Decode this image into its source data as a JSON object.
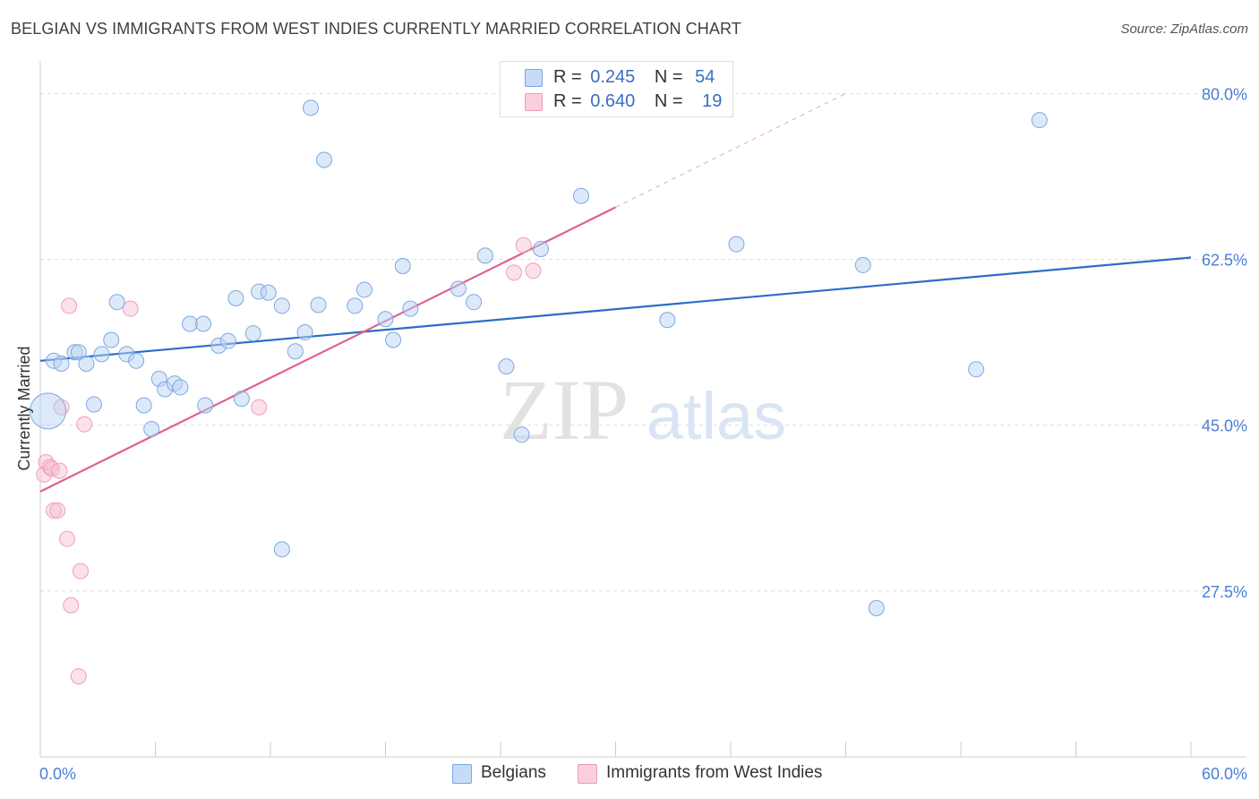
{
  "title": "BELGIAN VS IMMIGRANTS FROM WEST INDIES CURRENTLY MARRIED CORRELATION CHART",
  "source": "Source: ZipAtlas.com",
  "watermark": {
    "zip": "ZIP",
    "atlas": "atlas"
  },
  "legend": {
    "r_label": "R =",
    "n_label": "N =",
    "rows": [
      {
        "r": "0.245",
        "n": "54"
      },
      {
        "r": "0.640",
        "n": "19"
      }
    ]
  },
  "chart_data": {
    "type": "scatter",
    "title": "BELGIAN VS IMMIGRANTS FROM WEST INDIES CURRENTLY MARRIED CORRELATION CHART",
    "xlabel": "",
    "ylabel": "Currently Married",
    "xlim": [
      0,
      60
    ],
    "ylim": [
      10,
      82.5
    ],
    "x_tick_labels": [
      "0.0%",
      "60.0%"
    ],
    "y_ticks": [
      27.5,
      45.0,
      62.5,
      80.0
    ],
    "y_tick_labels": [
      "27.5%",
      "45.0%",
      "62.5%",
      "80.0%"
    ],
    "colors": {
      "belgians": "#6f9fe0",
      "west_indies": "#f0a0bc",
      "blue_line": "#2d6cc7",
      "pink_line": "#e0608e",
      "tick_text": "#4a7fd4"
    },
    "series": [
      {
        "name": "Belgians",
        "r": 0.245,
        "n": 54,
        "trend": {
          "x0": 0,
          "y0": 51.8,
          "x1": 60,
          "y1": 62.7
        },
        "points": [
          [
            0.4,
            46.5
          ],
          [
            0.7,
            51.8
          ],
          [
            1.1,
            51.5
          ],
          [
            1.8,
            52.7
          ],
          [
            2.0,
            52.7
          ],
          [
            2.4,
            51.5
          ],
          [
            2.8,
            47.2
          ],
          [
            3.2,
            52.5
          ],
          [
            3.7,
            54.0
          ],
          [
            4.0,
            58.0
          ],
          [
            4.5,
            52.5
          ],
          [
            5.0,
            51.8
          ],
          [
            5.4,
            47.1
          ],
          [
            5.8,
            44.6
          ],
          [
            6.2,
            49.9
          ],
          [
            6.5,
            48.8
          ],
          [
            7.0,
            49.4
          ],
          [
            7.3,
            49.0
          ],
          [
            7.8,
            55.7
          ],
          [
            8.5,
            55.7
          ],
          [
            8.6,
            47.1
          ],
          [
            9.3,
            53.4
          ],
          [
            9.8,
            53.9
          ],
          [
            10.2,
            58.4
          ],
          [
            10.5,
            47.8
          ],
          [
            11.1,
            54.7
          ],
          [
            11.4,
            59.1
          ],
          [
            11.9,
            59.0
          ],
          [
            12.6,
            57.6
          ],
          [
            12.6,
            31.9
          ],
          [
            13.3,
            52.8
          ],
          [
            13.8,
            54.8
          ],
          [
            14.1,
            78.5
          ],
          [
            14.5,
            57.7
          ],
          [
            14.8,
            73.0
          ],
          [
            16.4,
            57.6
          ],
          [
            16.9,
            59.3
          ],
          [
            18.0,
            56.2
          ],
          [
            18.4,
            54.0
          ],
          [
            18.9,
            61.8
          ],
          [
            19.3,
            57.3
          ],
          [
            21.8,
            59.4
          ],
          [
            22.6,
            58.0
          ],
          [
            23.2,
            62.9
          ],
          [
            24.3,
            51.2
          ],
          [
            25.1,
            44.0
          ],
          [
            26.1,
            63.6
          ],
          [
            28.2,
            69.2
          ],
          [
            32.7,
            56.1
          ],
          [
            36.3,
            64.1
          ],
          [
            42.9,
            61.9
          ],
          [
            43.6,
            25.7
          ],
          [
            48.8,
            50.9
          ],
          [
            52.1,
            77.2
          ]
        ]
      },
      {
        "name": "Immigrants from West Indies",
        "r": 0.64,
        "n": 19,
        "trend": {
          "x0": 0,
          "y0": 38.0,
          "x1": 30,
          "y1": 68.0
        },
        "trend_dashed_to": {
          "x": 42,
          "y": 80.0
        },
        "points": [
          [
            0.2,
            39.8
          ],
          [
            0.3,
            41.1
          ],
          [
            0.5,
            40.6
          ],
          [
            0.6,
            40.4
          ],
          [
            0.7,
            36.0
          ],
          [
            0.9,
            36.0
          ],
          [
            1.0,
            40.2
          ],
          [
            1.1,
            46.9
          ],
          [
            1.4,
            33.0
          ],
          [
            1.5,
            57.6
          ],
          [
            1.6,
            26.0
          ],
          [
            2.0,
            18.5
          ],
          [
            2.1,
            29.6
          ],
          [
            2.3,
            45.1
          ],
          [
            4.7,
            57.3
          ],
          [
            11.4,
            46.9
          ],
          [
            24.7,
            61.1
          ],
          [
            25.2,
            64.0
          ],
          [
            25.7,
            61.3
          ]
        ]
      }
    ]
  },
  "bottom_legend": [
    {
      "label": "Belgians"
    },
    {
      "label": "Immigrants from West Indies"
    }
  ]
}
